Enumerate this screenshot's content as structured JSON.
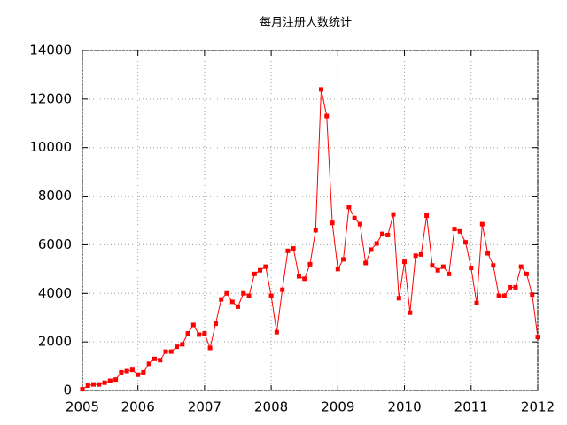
{
  "chart_data": {
    "type": "line",
    "title": "每月注册人数统计",
    "x": [
      2005.167,
      2005.25,
      2005.333,
      2005.417,
      2005.5,
      2005.583,
      2005.667,
      2005.75,
      2005.833,
      2005.917,
      2006.0,
      2006.083,
      2006.167,
      2006.25,
      2006.333,
      2006.417,
      2006.5,
      2006.583,
      2006.667,
      2006.75,
      2006.833,
      2006.917,
      2007.0,
      2007.083,
      2007.167,
      2007.25,
      2007.333,
      2007.417,
      2007.5,
      2007.583,
      2007.667,
      2007.75,
      2007.833,
      2007.917,
      2008.0,
      2008.083,
      2008.167,
      2008.25,
      2008.333,
      2008.417,
      2008.5,
      2008.583,
      2008.667,
      2008.75,
      2008.833,
      2008.917,
      2009.0,
      2009.083,
      2009.167,
      2009.25,
      2009.333,
      2009.417,
      2009.5,
      2009.583,
      2009.667,
      2009.75,
      2009.833,
      2009.917,
      2010.0,
      2010.083,
      2010.167,
      2010.25,
      2010.333,
      2010.417,
      2010.5,
      2010.583,
      2010.667,
      2010.75,
      2010.833,
      2010.917,
      2011.0,
      2011.083,
      2011.167,
      2011.25,
      2011.333,
      2011.417,
      2011.5,
      2011.583,
      2011.667,
      2011.75,
      2011.833,
      2011.917,
      2012.0
    ],
    "series": [
      {
        "color": "#ff0000",
        "values": [
          50,
          200,
          250,
          250,
          320,
          400,
          450,
          750,
          800,
          850,
          650,
          750,
          1100,
          1300,
          1250,
          1600,
          1600,
          1800,
          1900,
          2350,
          2700,
          2300,
          2350,
          1750,
          2750,
          3750,
          4000,
          3650,
          3450,
          4000,
          3900,
          4800,
          4950,
          5100,
          3900,
          2400,
          4150,
          5750,
          5850,
          4700,
          4600,
          5200,
          6600,
          12400,
          11300,
          6900,
          5000,
          5400,
          7550,
          7100,
          6850,
          5250,
          5800,
          6050,
          6450,
          6400,
          7250,
          3800,
          5300,
          3200,
          5550,
          5600,
          7200,
          5150,
          4950,
          5100,
          4800,
          6650,
          6550,
          6100,
          5050,
          3600,
          6850,
          5650,
          5150,
          3900,
          3900,
          4250,
          4250,
          5100,
          4800,
          3950,
          2200
        ]
      }
    ],
    "xlim": [
      2005.167,
      2012.0
    ],
    "xticks": [
      {
        "value": 2005.167,
        "label": "2005"
      },
      2006,
      2007,
      2008,
      2009,
      2010,
      2011,
      2012
    ],
    "ylim": [
      0,
      14000
    ],
    "yticks": [
      0,
      2000,
      4000,
      6000,
      8000,
      10000,
      12000,
      14000
    ],
    "grid": true
  }
}
